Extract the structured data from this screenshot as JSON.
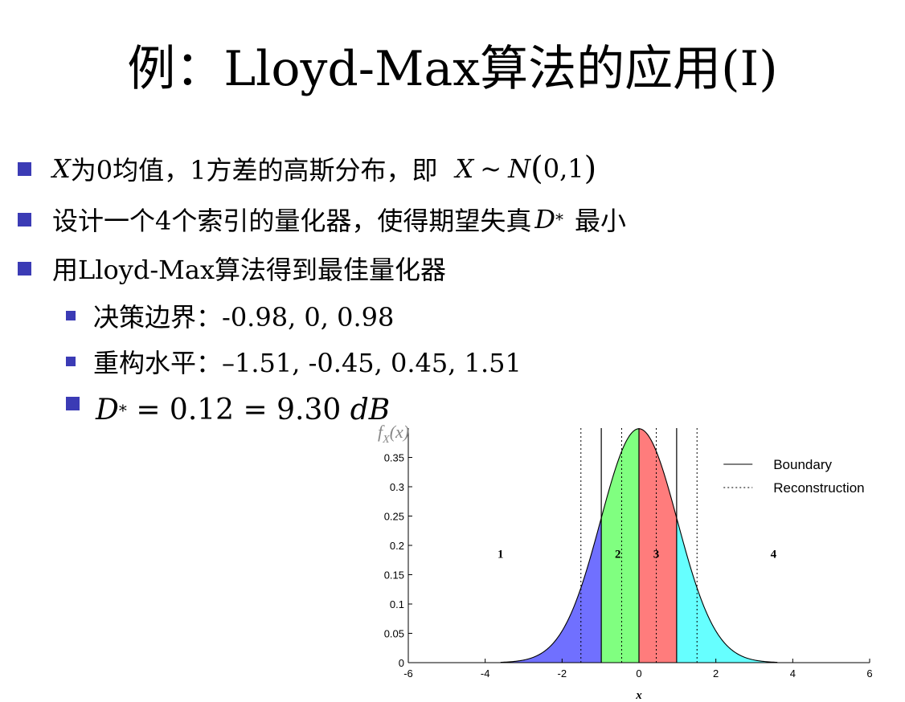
{
  "slide": {
    "title": "例：Lloyd-Max算法的应用(I)",
    "bullets": {
      "b1_var": "X",
      "b1_text": "为0均值，1方差的高斯分布，即",
      "b1_formula_X": "X",
      "b1_formula_tilde": "~",
      "b1_formula_N": "N",
      "b1_formula_args": "0,1",
      "b2_text": "设计一个4个索引的量化器，使得期望失真",
      "b2_D": "D",
      "b2_star": "*",
      "b2_tail": "最小",
      "b3_text": "用Lloyd-Max算法得到最佳量化器"
    },
    "sub": {
      "s1": "决策边界：-0.98, 0, 0.98",
      "s2": "重构水平：–1.51, -0.45, 0.45, 1.51",
      "s3_D": "D",
      "s3_star": "*",
      "s3_eq": " = 0.12 = 9.30 ",
      "s3_unit": "dB"
    }
  },
  "colors": {
    "bullet": "#3b3bb5",
    "region_1": "#7070ff",
    "region_2": "#80ff80",
    "region_3": "#ff7c7c",
    "region_4": "#66ffff"
  },
  "chart_data": {
    "type": "area",
    "function": "gaussian pdf, mean 0, variance 1",
    "ylabel": "f_X(x)",
    "xlabel": "x",
    "xlim": [
      -6,
      6
    ],
    "ylim": [
      0,
      0.4
    ],
    "x_ticks": [
      -6,
      -4,
      -2,
      0,
      2,
      4,
      6
    ],
    "y_ticks": [
      0,
      0.05,
      0.1,
      0.15,
      0.2,
      0.25,
      0.3,
      0.35
    ],
    "boundaries": [
      -0.98,
      0,
      0.98
    ],
    "reconstruction_levels": [
      -1.51,
      -0.45,
      0.45,
      1.51
    ],
    "regions": [
      {
        "label": "1",
        "x_label": -3.6,
        "y_label": 0.19
      },
      {
        "label": "2",
        "x_label": -0.55,
        "y_label": 0.19
      },
      {
        "label": "3",
        "x_label": 0.45,
        "y_label": 0.19
      },
      {
        "label": "4",
        "x_label": 3.5,
        "y_label": 0.19
      }
    ],
    "legend": {
      "position": "top-right",
      "items": [
        {
          "label": "Boundary",
          "style": "solid"
        },
        {
          "label": "Reconstruction",
          "style": "dotted"
        }
      ]
    }
  }
}
